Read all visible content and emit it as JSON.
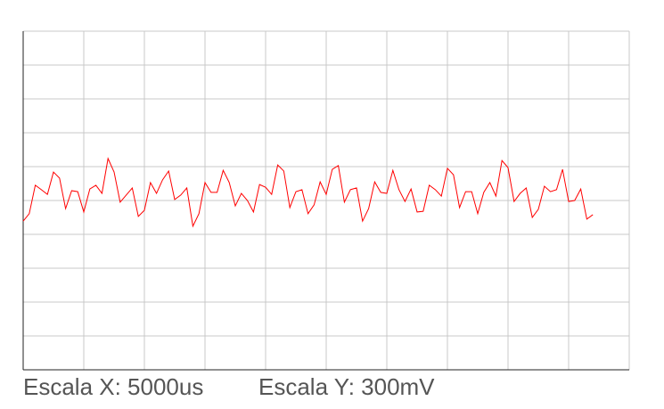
{
  "chart_data": {
    "type": "line",
    "x": [
      0,
      1,
      2,
      3,
      4,
      5,
      6,
      7,
      8,
      9,
      10,
      11,
      12,
      13,
      14,
      15,
      16,
      17,
      18,
      19,
      20,
      21,
      22,
      23,
      24,
      25,
      26,
      27,
      28,
      29,
      30,
      31,
      32,
      33,
      34,
      35,
      36,
      37,
      38,
      39,
      40,
      41,
      42,
      43,
      44,
      45,
      46,
      47,
      48,
      49,
      50,
      51,
      52,
      53,
      54,
      55,
      56,
      57,
      58,
      59,
      60,
      61,
      62,
      63,
      64,
      65,
      66,
      67,
      68,
      69,
      70,
      71,
      72,
      73,
      74,
      75,
      76,
      77,
      78,
      79,
      80,
      81,
      82,
      83,
      84,
      85,
      86,
      87,
      88,
      89,
      90,
      91,
      92,
      93,
      94
    ],
    "series": [
      {
        "color": "#ff0000",
        "values": [
          -0.61,
          -0.39,
          0.45,
          0.32,
          0.18,
          0.84,
          0.66,
          -0.24,
          0.29,
          0.26,
          -0.34,
          0.34,
          0.45,
          0.21,
          1.24,
          0.84,
          -0.05,
          0.16,
          0.37,
          -0.47,
          -0.29,
          0.53,
          0.21,
          0.61,
          0.87,
          0.03,
          0.16,
          0.37,
          -0.76,
          -0.39,
          0.53,
          0.24,
          0.24,
          0.89,
          0.53,
          -0.16,
          0.21,
          0,
          -0.34,
          0.47,
          0.39,
          0.18,
          1.05,
          0.87,
          -0.21,
          0.26,
          0.32,
          -0.39,
          -0.13,
          0.55,
          0.18,
          0.92,
          1.03,
          -0.05,
          0.32,
          0.37,
          -0.61,
          -0.24,
          0.55,
          0.24,
          0.21,
          0.89,
          0.32,
          -0.03,
          0.34,
          -0.34,
          -0.32,
          0.45,
          0.32,
          0.13,
          0.95,
          0.76,
          -0.21,
          0.26,
          0.26,
          -0.39,
          0.24,
          0.53,
          0.13,
          1.18,
          0.97,
          -0.03,
          0.21,
          0.37,
          -0.5,
          -0.26,
          0.42,
          0.26,
          0.32,
          0.92,
          -0.03,
          0,
          0.34,
          -0.55,
          -0.42
        ]
      }
    ],
    "xlim": [
      0,
      100
    ],
    "xticks": [
      0,
      10,
      20,
      30,
      40,
      50,
      60,
      70,
      80,
      90,
      100
    ],
    "ylim": [
      -5,
      5
    ],
    "yticks": [
      -5,
      -4,
      -3,
      -2,
      -1,
      0,
      1,
      2,
      3,
      4,
      5
    ],
    "grid": true,
    "annotations": [
      "Escala X: 5000us",
      "Escala Y: 300mV"
    ]
  }
}
